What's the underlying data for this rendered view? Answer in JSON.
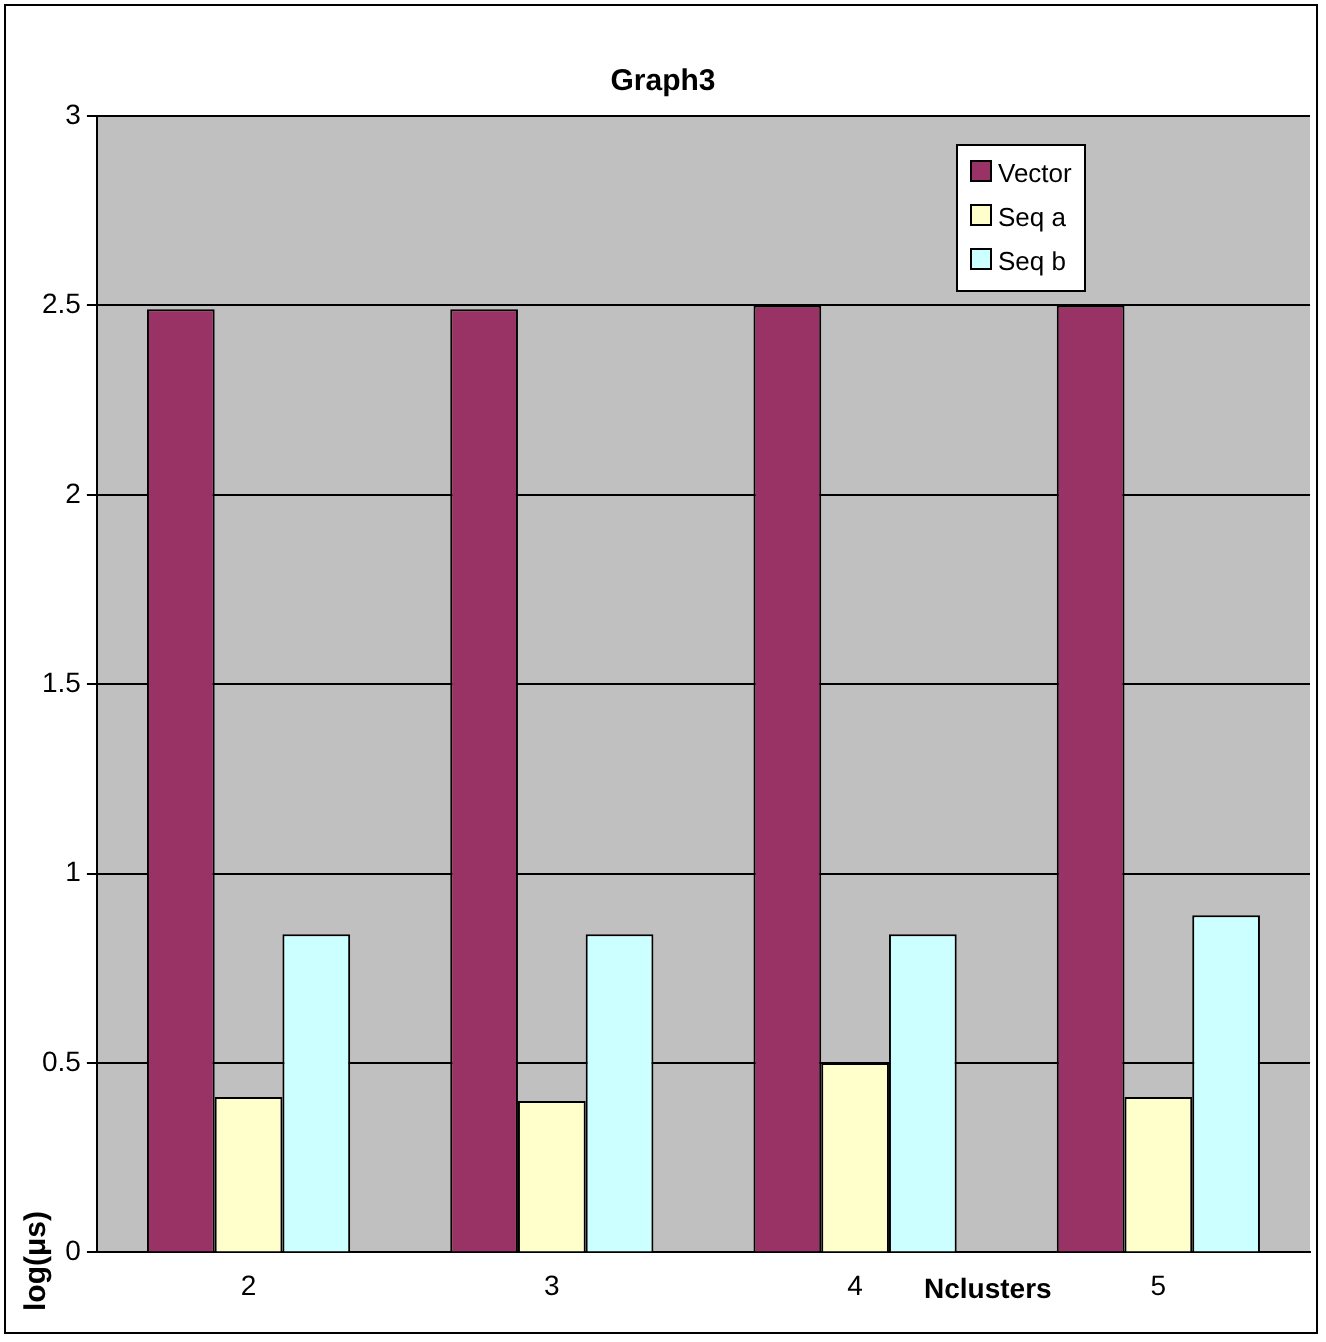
{
  "chart_data": {
    "type": "bar",
    "title": "Graph3",
    "xlabel": "Nclusters",
    "ylabel": "log(μs)",
    "categories": [
      "2",
      "3",
      "4",
      "5"
    ],
    "series": [
      {
        "name": "Vector",
        "color": "#993366",
        "values": [
          2.49,
          2.49,
          2.5,
          2.5
        ]
      },
      {
        "name": "Seq a",
        "color": "#ffffcc",
        "values": [
          0.41,
          0.4,
          0.5,
          0.41
        ]
      },
      {
        "name": "Seq b",
        "color": "#ccffff",
        "values": [
          0.84,
          0.84,
          0.84,
          0.89
        ]
      }
    ],
    "ylim": [
      0,
      3
    ],
    "yticks": [
      0,
      0.5,
      1,
      1.5,
      2,
      2.5,
      3
    ],
    "grid": "y",
    "legend": "top right"
  }
}
